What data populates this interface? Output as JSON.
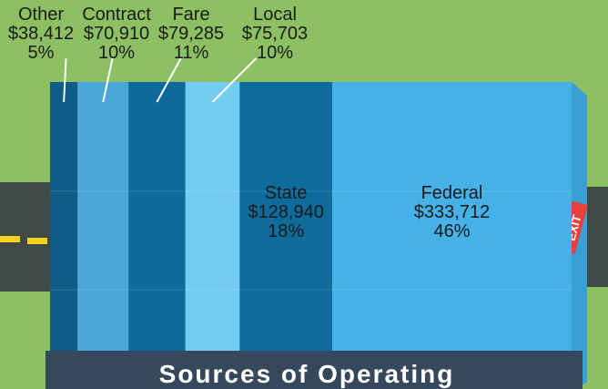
{
  "chart_data": {
    "type": "stacked-bar",
    "title": "Sources of Operating",
    "annotations": [
      "EXIT"
    ],
    "series": [
      {
        "name": "Other",
        "color": "#0f5d86",
        "values": [
          38412
        ],
        "value_labels": [
          "$38,412"
        ],
        "share_labels": [
          "5%"
        ]
      },
      {
        "name": "Contract",
        "color": "#4aa6d9",
        "values": [
          70910
        ],
        "value_labels": [
          "$70,910"
        ],
        "share_labels": [
          "10%"
        ]
      },
      {
        "name": "Fare",
        "color": "#0e6a9a",
        "values": [
          79285
        ],
        "value_labels": [
          "$79,285"
        ],
        "share_labels": [
          "11%"
        ]
      },
      {
        "name": "Local",
        "color": "#74ccf1",
        "values": [
          75703
        ],
        "value_labels": [
          "$75,703"
        ],
        "share_labels": [
          "10%"
        ]
      },
      {
        "name": "State",
        "color": "#0e6c9c",
        "values": [
          128940
        ],
        "value_labels": [
          "$128,940"
        ],
        "share_labels": [
          "18%"
        ]
      },
      {
        "name": "Federal",
        "color": "#46b1e7",
        "values": [
          333712
        ],
        "value_labels": [
          "$333,712"
        ],
        "share_labels": [
          "46%"
        ]
      }
    ]
  }
}
